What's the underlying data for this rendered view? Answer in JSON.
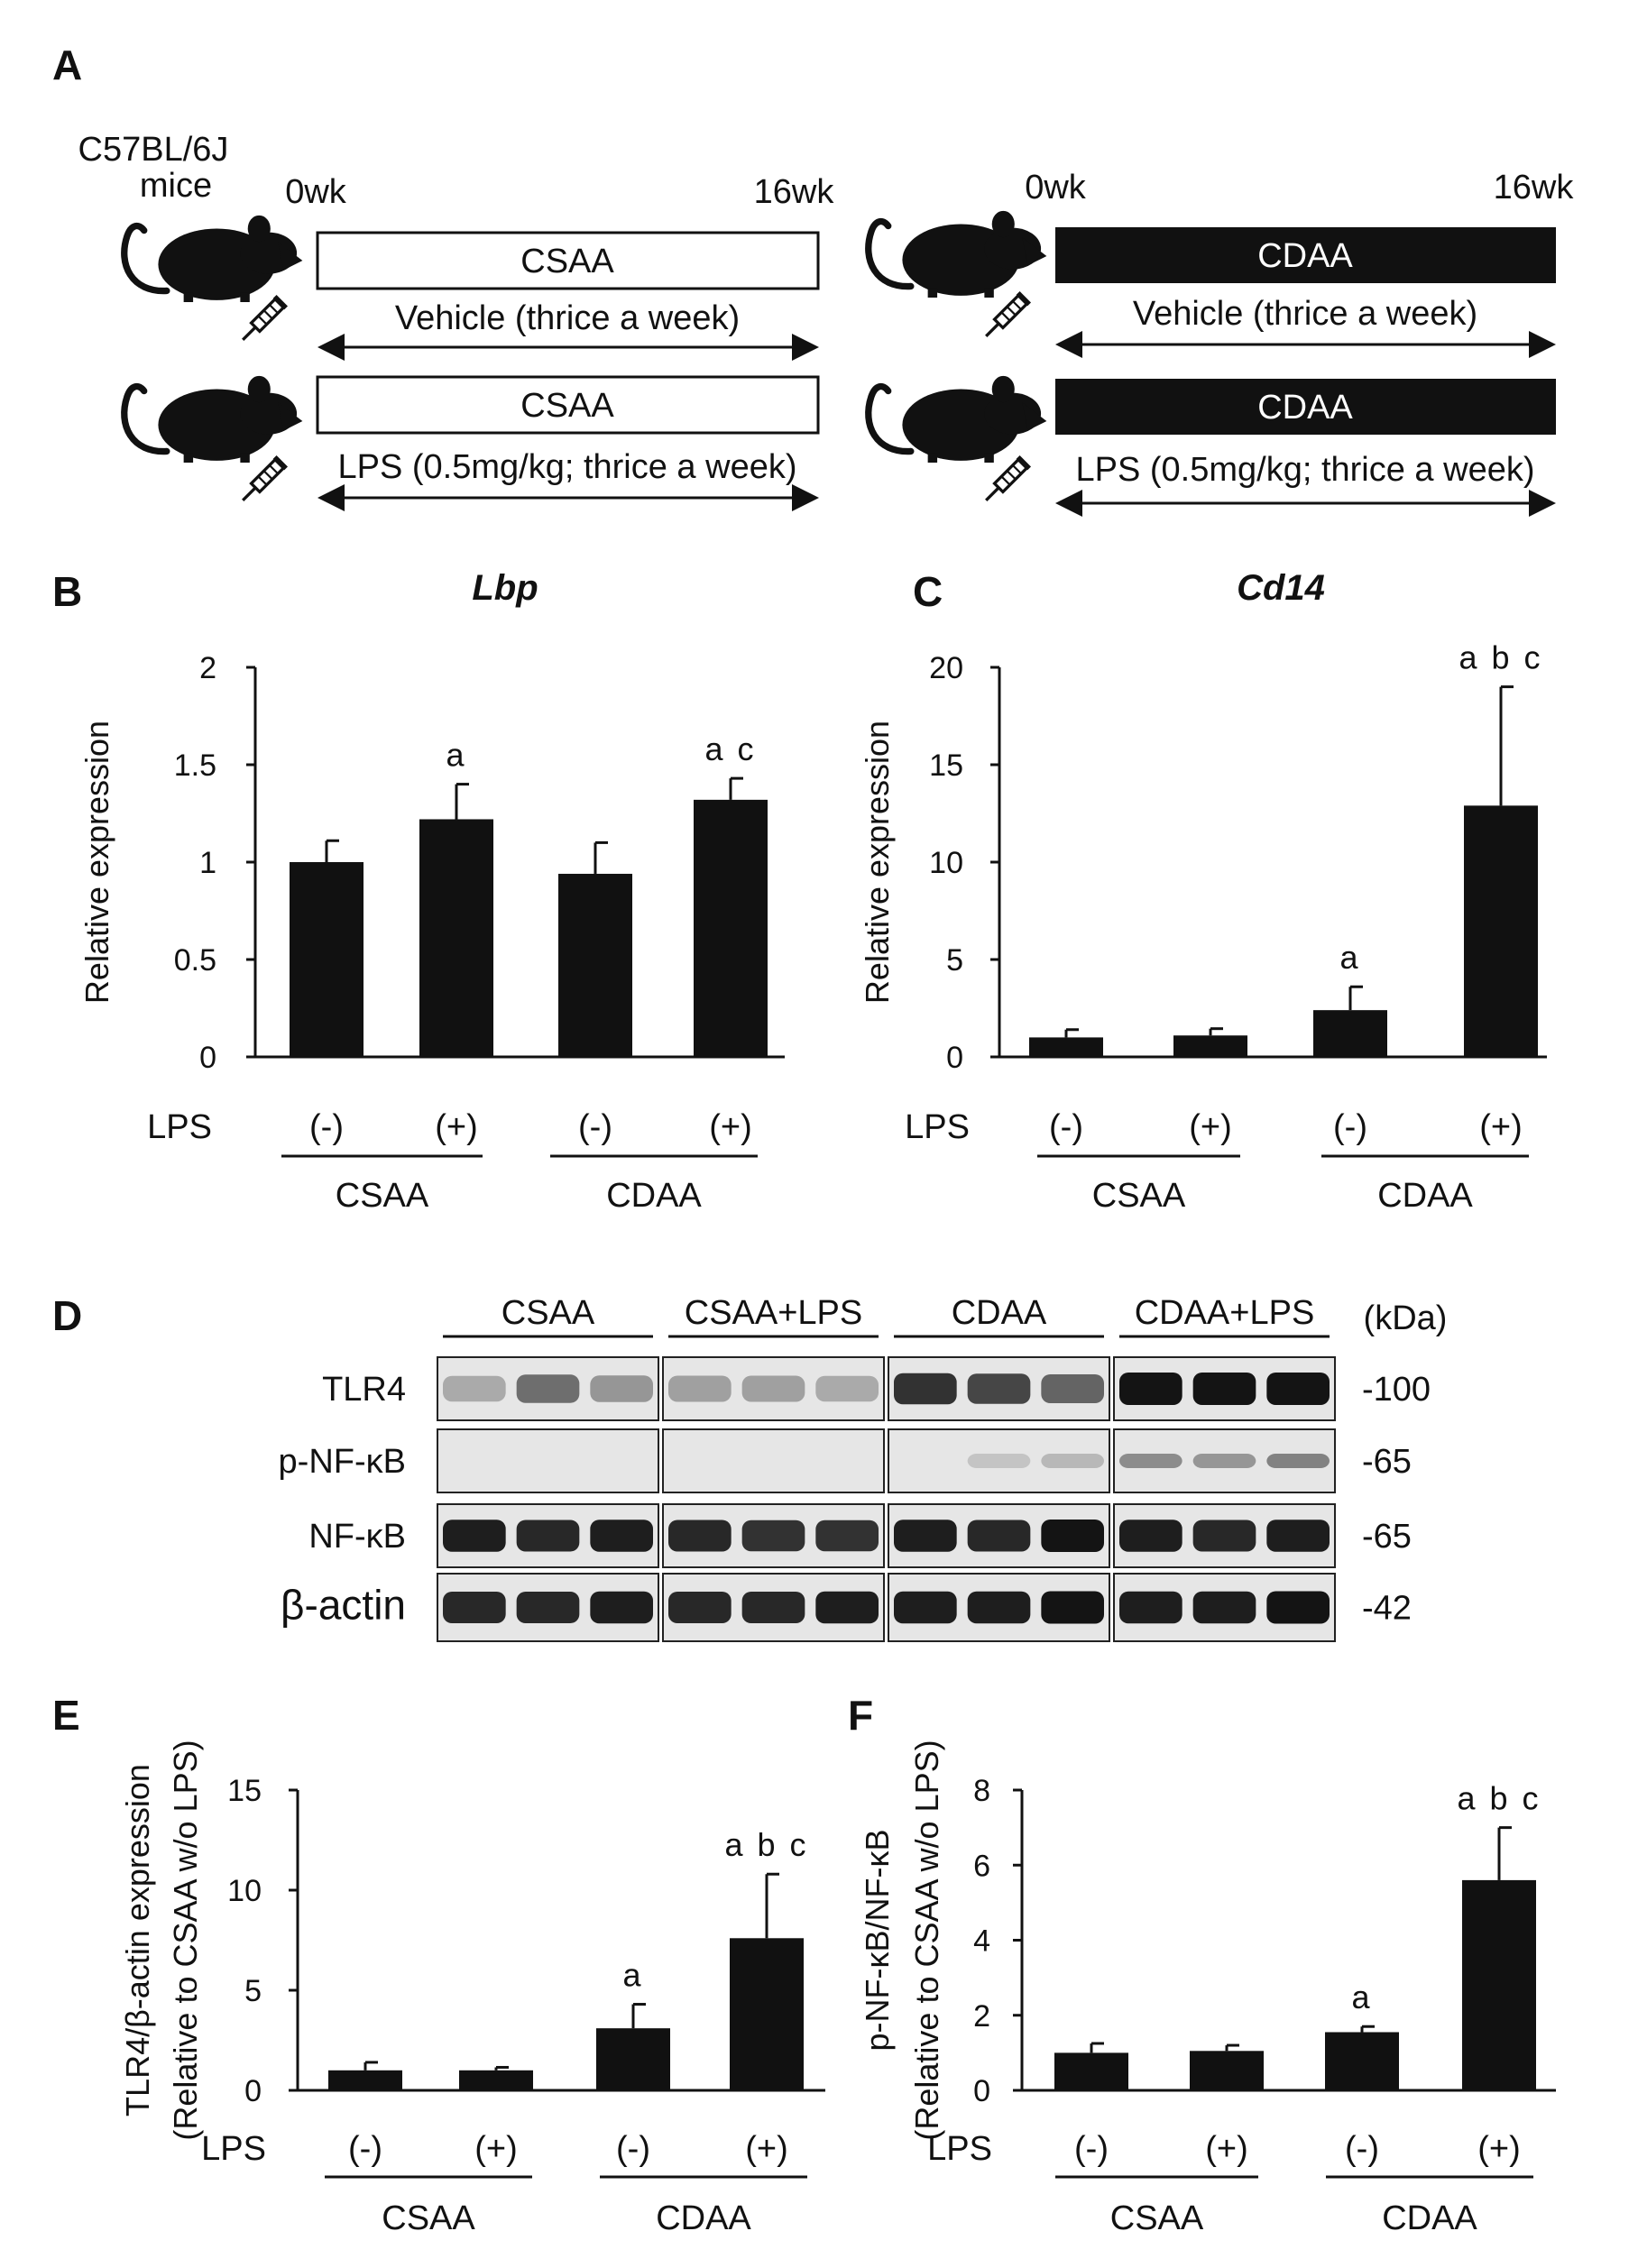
{
  "panel_labels": {
    "A": "A",
    "B": "B",
    "C": "C",
    "D": "D",
    "E": "E",
    "F": "F"
  },
  "schematic": {
    "strain_line1": "C57BL/6J",
    "strain_line2": "mice",
    "start_label": "0wk",
    "end_label": "16wk",
    "groups": [
      {
        "diet": "CSAA",
        "treatment": "Vehicle (thrice a week)"
      },
      {
        "diet": "CSAA",
        "treatment": "LPS (0.5mg/kg; thrice a week)"
      },
      {
        "diet": "CDAA",
        "treatment": "Vehicle (thrice a week)"
      },
      {
        "diet": "CDAA",
        "treatment": "LPS (0.5mg/kg; thrice a week)"
      }
    ]
  },
  "common": {
    "lps_label": "LPS",
    "neg": "(-)",
    "pos": "(+)",
    "group_names": [
      "CSAA",
      "CDAA"
    ]
  },
  "blot": {
    "lane_groups": [
      "CSAA",
      "CSAA+LPS",
      "CDAA",
      "CDAA+LPS"
    ],
    "unit_label": "(kDa)",
    "rows": [
      {
        "name": "TLR4",
        "kda": "-100"
      },
      {
        "name": "p-NF-κB",
        "kda": "-65"
      },
      {
        "name": "NF-κB",
        "kda": "-65"
      },
      {
        "name": "β-actin",
        "kda": "-42"
      }
    ],
    "band_intensity": [
      [
        [
          0.25,
          0.55,
          0.35
        ],
        [
          0.3,
          0.3,
          0.25
        ],
        [
          0.85,
          0.75,
          0.6
        ],
        [
          1.0,
          1.0,
          1.0
        ]
      ],
      [
        [
          0,
          0,
          0
        ],
        [
          0,
          0,
          0
        ],
        [
          0,
          0.12,
          0.18
        ],
        [
          0.4,
          0.35,
          0.45
        ]
      ],
      [
        [
          0.95,
          0.9,
          0.95
        ],
        [
          0.9,
          0.85,
          0.85
        ],
        [
          0.95,
          0.9,
          1.0
        ],
        [
          0.95,
          0.9,
          0.95
        ]
      ],
      [
        [
          0.9,
          0.9,
          0.95
        ],
        [
          0.9,
          0.9,
          0.95
        ],
        [
          0.95,
          0.95,
          1.0
        ],
        [
          0.95,
          0.95,
          1.0
        ]
      ]
    ]
  },
  "chart_data": [
    {
      "panel": "B",
      "type": "bar",
      "title": "Lbp",
      "ylabel": "Relative expression",
      "ylim": [
        0,
        2
      ],
      "yticks": [
        "0",
        "0.5",
        "1",
        "1.5",
        "2"
      ],
      "categories": [
        "CSAA (-)",
        "CSAA (+)",
        "CDAA (-)",
        "CDAA (+)"
      ],
      "values": [
        1.0,
        1.22,
        0.94,
        1.32
      ],
      "errors": [
        0.11,
        0.18,
        0.16,
        0.11
      ],
      "significance": [
        "",
        "a",
        "",
        "a c"
      ]
    },
    {
      "panel": "C",
      "type": "bar",
      "title": "Cd14",
      "ylabel": "Relative expression",
      "ylim": [
        0,
        20
      ],
      "yticks": [
        "0",
        "5",
        "10",
        "15",
        "20"
      ],
      "categories": [
        "CSAA (-)",
        "CSAA (+)",
        "CDAA (-)",
        "CDAA (+)"
      ],
      "values": [
        1.0,
        1.1,
        2.4,
        12.9
      ],
      "errors": [
        0.4,
        0.35,
        1.2,
        6.1
      ],
      "significance": [
        "",
        "",
        "a",
        "a b c"
      ]
    },
    {
      "panel": "E",
      "type": "bar",
      "title": "",
      "ylabel": "TLR4/β-actin expression",
      "ylabel2": "(Relative to CSAA w/o LPS)",
      "ylim": [
        0,
        15
      ],
      "yticks": [
        "0",
        "5",
        "10",
        "15"
      ],
      "categories": [
        "CSAA (-)",
        "CSAA (+)",
        "CDAA (-)",
        "CDAA (+)"
      ],
      "values": [
        1.0,
        1.0,
        3.1,
        7.6
      ],
      "errors": [
        0.4,
        0.15,
        1.2,
        3.2
      ],
      "significance": [
        "",
        "",
        "a",
        "a b c"
      ]
    },
    {
      "panel": "F",
      "type": "bar",
      "title": "",
      "ylabel": "p-NF-κB/NF-κB",
      "ylabel2": "(Relative to CSAA w/o LPS)",
      "ylim": [
        0,
        8
      ],
      "yticks": [
        "0",
        "2",
        "4",
        "6",
        "8"
      ],
      "categories": [
        "CSAA (-)",
        "CSAA (+)",
        "CDAA (-)",
        "CDAA (+)"
      ],
      "values": [
        1.0,
        1.05,
        1.55,
        5.6
      ],
      "errors": [
        0.25,
        0.15,
        0.15,
        1.4
      ],
      "significance": [
        "",
        "",
        "a",
        "a b c"
      ]
    }
  ]
}
